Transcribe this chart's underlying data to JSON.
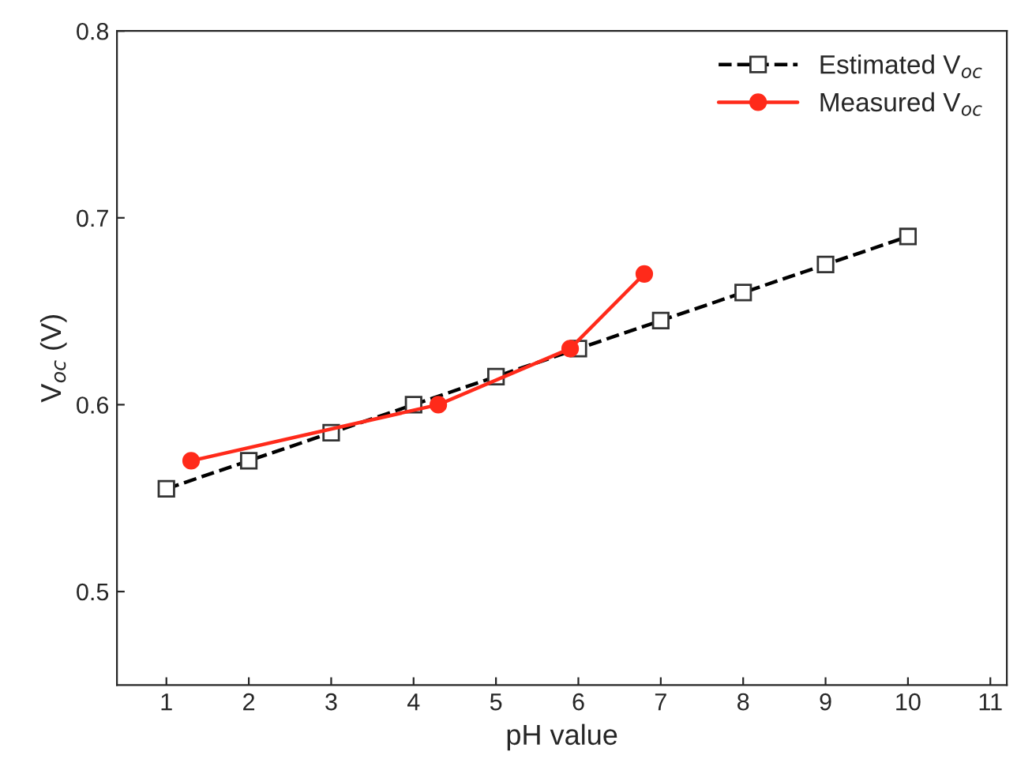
{
  "chart_data": {
    "type": "line",
    "xlabel": "pH value",
    "ylabel": "V$_{oc}$ (V)",
    "xlim": [
      0.4,
      11.2
    ],
    "xticks": [
      1,
      2,
      3,
      4,
      5,
      6,
      7,
      8,
      9,
      10,
      11
    ],
    "ylim": [
      0.45,
      0.8
    ],
    "yticks": [
      0.5,
      0.6,
      0.7,
      0.8
    ],
    "legend": "top right",
    "grid": false,
    "series": [
      {
        "name": "Estimated V$_{oc}$",
        "color": "#000000",
        "marker": "square",
        "line_style": "dashed",
        "x": [
          1,
          2,
          3,
          4,
          5,
          6,
          7,
          8,
          9,
          10
        ],
        "values": [
          0.555,
          0.57,
          0.585,
          0.6,
          0.615,
          0.63,
          0.645,
          0.66,
          0.675,
          0.69
        ]
      },
      {
        "name": "Measured V$_{oc}$",
        "color": "#ff2a1a",
        "marker": "circle",
        "line_style": "solid",
        "x": [
          1.3,
          4.3,
          5.9,
          6.8
        ],
        "values": [
          0.57,
          0.6,
          0.63,
          0.67
        ]
      }
    ]
  }
}
